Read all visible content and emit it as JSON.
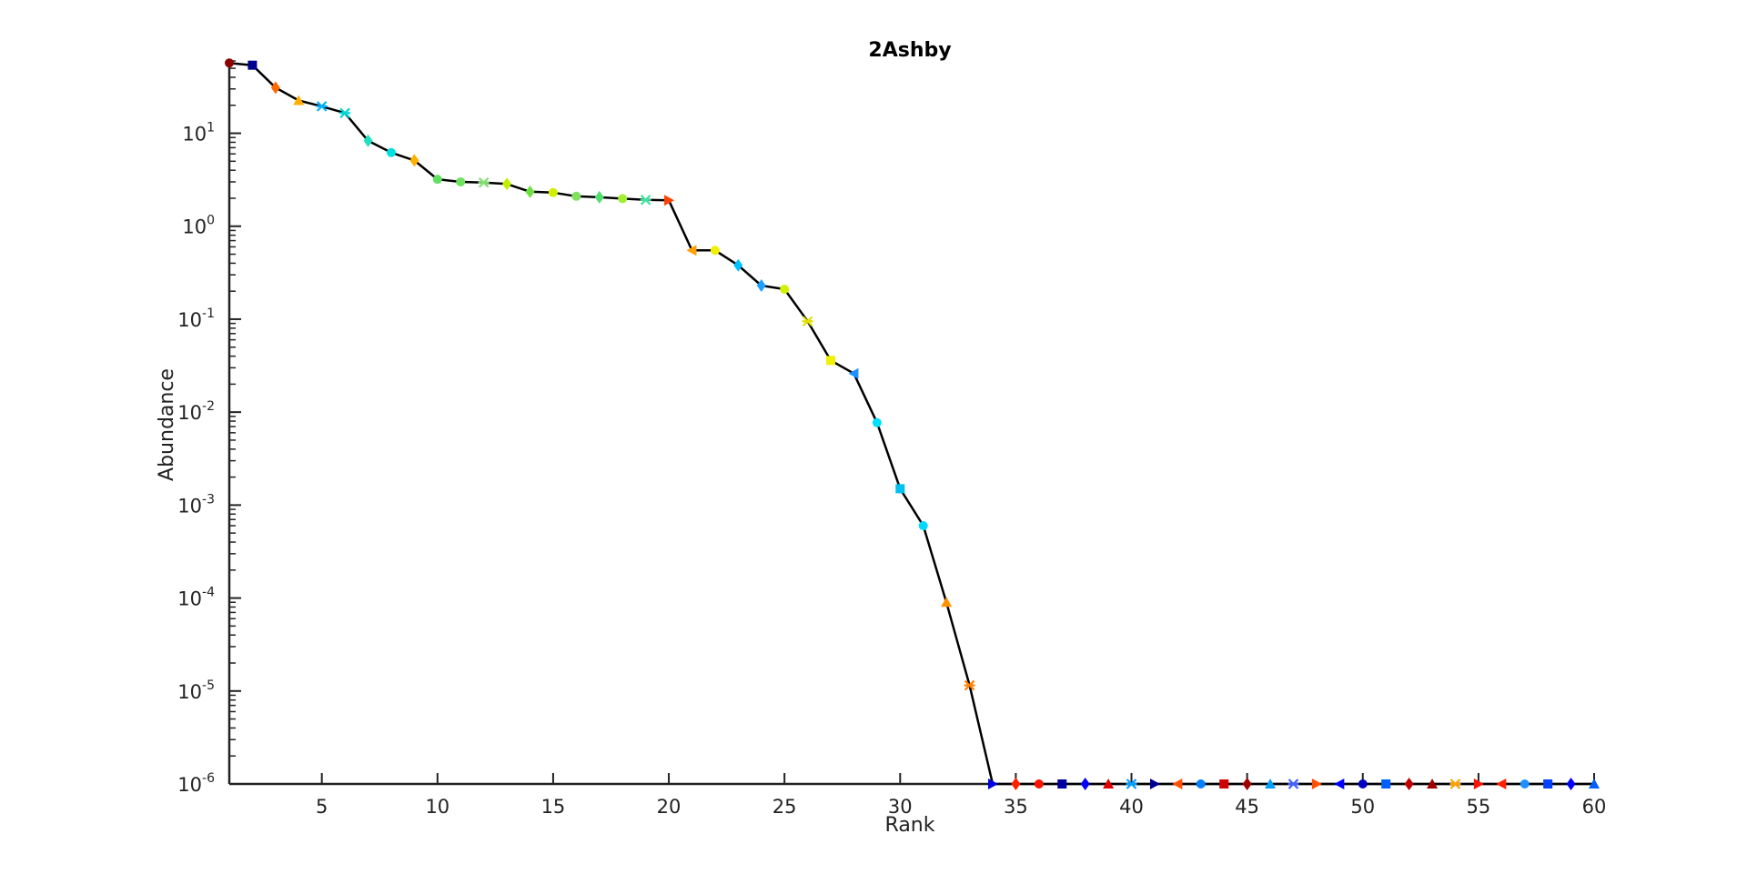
{
  "chart_data": {
    "type": "line",
    "title": "2Ashby",
    "xlabel": "Rank",
    "ylabel": "Abundance",
    "xlim": [
      1,
      60
    ],
    "ylim": [
      1e-06,
      60
    ],
    "yscale": "log",
    "grid": false,
    "x_ticks": [
      5,
      10,
      15,
      20,
      25,
      30,
      35,
      40,
      45,
      50,
      55,
      60
    ],
    "y_ticks": [
      {
        "value": 10.0,
        "base": "10",
        "exp": "1"
      },
      {
        "value": 1.0,
        "base": "10",
        "exp": "0"
      },
      {
        "value": 0.1,
        "base": "10",
        "exp": "-1"
      },
      {
        "value": 0.01,
        "base": "10",
        "exp": "-2"
      },
      {
        "value": 0.001,
        "base": "10",
        "exp": "-3"
      },
      {
        "value": 0.0001,
        "base": "10",
        "exp": "-4"
      },
      {
        "value": 1e-05,
        "base": "10",
        "exp": "-5"
      },
      {
        "value": 1e-06,
        "base": "10",
        "exp": "-6"
      }
    ],
    "line_color": "#000000",
    "points": [
      {
        "x": 1,
        "y": 57,
        "marker": "circle",
        "color": "#8b0000"
      },
      {
        "x": 2,
        "y": 54,
        "marker": "square",
        "color": "#00008f"
      },
      {
        "x": 3,
        "y": 31,
        "marker": "diamond",
        "color": "#ff6a00"
      },
      {
        "x": 4,
        "y": 22.5,
        "marker": "triangle-up",
        "color": "#ffb000"
      },
      {
        "x": 5,
        "y": 19.5,
        "marker": "star",
        "color": "#00b0ff"
      },
      {
        "x": 6,
        "y": 16.5,
        "marker": "x",
        "color": "#00d6d6"
      },
      {
        "x": 7,
        "y": 8.3,
        "marker": "diamond",
        "color": "#20e0c0"
      },
      {
        "x": 8,
        "y": 6.2,
        "marker": "circle",
        "color": "#00e0e0"
      },
      {
        "x": 9,
        "y": 5.1,
        "marker": "diamond",
        "color": "#ffb000"
      },
      {
        "x": 10,
        "y": 3.2,
        "marker": "circle",
        "color": "#60e060"
      },
      {
        "x": 11,
        "y": 3.0,
        "marker": "circle",
        "color": "#70e060"
      },
      {
        "x": 12,
        "y": 2.95,
        "marker": "star",
        "color": "#80e070"
      },
      {
        "x": 13,
        "y": 2.85,
        "marker": "diamond",
        "color": "#c0f000"
      },
      {
        "x": 14,
        "y": 2.35,
        "marker": "diamond",
        "color": "#70e040"
      },
      {
        "x": 15,
        "y": 2.3,
        "marker": "circle",
        "color": "#d0f000"
      },
      {
        "x": 16,
        "y": 2.1,
        "marker": "circle",
        "color": "#80e060"
      },
      {
        "x": 17,
        "y": 2.05,
        "marker": "diamond",
        "color": "#50e070"
      },
      {
        "x": 18,
        "y": 1.98,
        "marker": "circle",
        "color": "#a0f030"
      },
      {
        "x": 19,
        "y": 1.92,
        "marker": "star",
        "color": "#40e0a0"
      },
      {
        "x": 20,
        "y": 1.9,
        "marker": "triangle-right",
        "color": "#ff4000"
      },
      {
        "x": 21,
        "y": 0.55,
        "marker": "triangle-left",
        "color": "#ffa000"
      },
      {
        "x": 22,
        "y": 0.55,
        "marker": "circle",
        "color": "#f0f000"
      },
      {
        "x": 23,
        "y": 0.38,
        "marker": "diamond",
        "color": "#00c0ff"
      },
      {
        "x": 24,
        "y": 0.23,
        "marker": "diamond",
        "color": "#1ea0ff"
      },
      {
        "x": 25,
        "y": 0.21,
        "marker": "circle",
        "color": "#d0f000"
      },
      {
        "x": 26,
        "y": 0.095,
        "marker": "star",
        "color": "#e0e000"
      },
      {
        "x": 27,
        "y": 0.036,
        "marker": "square",
        "color": "#f0f000"
      },
      {
        "x": 28,
        "y": 0.026,
        "marker": "triangle-left",
        "color": "#1e90ff"
      },
      {
        "x": 29,
        "y": 0.0077,
        "marker": "circle",
        "color": "#00e0ff"
      },
      {
        "x": 30,
        "y": 0.0015,
        "marker": "square",
        "color": "#00c0f0"
      },
      {
        "x": 31,
        "y": 0.0006,
        "marker": "circle",
        "color": "#00d8ff"
      },
      {
        "x": 32,
        "y": 9e-05,
        "marker": "triangle-up",
        "color": "#ff9000"
      },
      {
        "x": 33,
        "y": 1.15e-05,
        "marker": "star",
        "color": "#ff8000"
      },
      {
        "x": 34,
        "y": 1e-06,
        "marker": "triangle-right",
        "color": "#0000e0"
      },
      {
        "x": 35,
        "y": 1e-06,
        "marker": "diamond",
        "color": "#ff2000"
      },
      {
        "x": 36,
        "y": 1e-06,
        "marker": "circle",
        "color": "#ff1000"
      },
      {
        "x": 37,
        "y": 1e-06,
        "marker": "square",
        "color": "#0000a0"
      },
      {
        "x": 38,
        "y": 1e-06,
        "marker": "diamond",
        "color": "#0000ff"
      },
      {
        "x": 39,
        "y": 1e-06,
        "marker": "triangle-up",
        "color": "#e00000"
      },
      {
        "x": 40,
        "y": 1e-06,
        "marker": "star",
        "color": "#00a0ff"
      },
      {
        "x": 41,
        "y": 1e-06,
        "marker": "triangle-right",
        "color": "#000090"
      },
      {
        "x": 42,
        "y": 1e-06,
        "marker": "triangle-left",
        "color": "#ff5000"
      },
      {
        "x": 43,
        "y": 1e-06,
        "marker": "circle",
        "color": "#0080ff"
      },
      {
        "x": 44,
        "y": 1e-06,
        "marker": "square",
        "color": "#d00000"
      },
      {
        "x": 45,
        "y": 1e-06,
        "marker": "diamond",
        "color": "#a00000"
      },
      {
        "x": 46,
        "y": 1e-06,
        "marker": "triangle-up",
        "color": "#00a0ff"
      },
      {
        "x": 47,
        "y": 1e-06,
        "marker": "star",
        "color": "#4060ff"
      },
      {
        "x": 48,
        "y": 1e-06,
        "marker": "triangle-right",
        "color": "#ff5000"
      },
      {
        "x": 49,
        "y": 1e-06,
        "marker": "triangle-left",
        "color": "#0000ff"
      },
      {
        "x": 50,
        "y": 1e-06,
        "marker": "circle",
        "color": "#0000c0"
      },
      {
        "x": 51,
        "y": 1e-06,
        "marker": "square",
        "color": "#0060ff"
      },
      {
        "x": 52,
        "y": 1e-06,
        "marker": "diamond",
        "color": "#c00000"
      },
      {
        "x": 53,
        "y": 1e-06,
        "marker": "triangle-up",
        "color": "#a00000"
      },
      {
        "x": 54,
        "y": 1e-06,
        "marker": "star",
        "color": "#ffa000"
      },
      {
        "x": 55,
        "y": 1e-06,
        "marker": "triangle-right",
        "color": "#ff1000"
      },
      {
        "x": 56,
        "y": 1e-06,
        "marker": "triangle-left",
        "color": "#ff2000"
      },
      {
        "x": 57,
        "y": 1e-06,
        "marker": "circle",
        "color": "#1e90ff"
      },
      {
        "x": 58,
        "y": 1e-06,
        "marker": "square",
        "color": "#0040ff"
      },
      {
        "x": 59,
        "y": 1e-06,
        "marker": "diamond",
        "color": "#0000ff"
      },
      {
        "x": 60,
        "y": 1e-06,
        "marker": "triangle-up",
        "color": "#0060ff"
      }
    ]
  }
}
